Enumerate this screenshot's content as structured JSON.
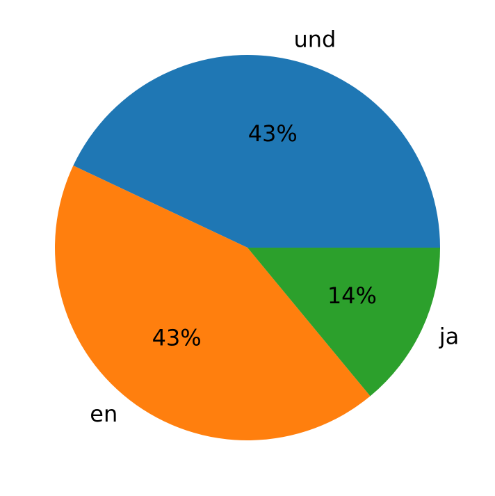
{
  "chart_data": {
    "type": "pie",
    "categories": [
      "und",
      "en",
      "ja"
    ],
    "values": [
      43,
      43,
      14
    ],
    "value_labels": [
      "43%",
      "43%",
      "14%"
    ],
    "colors": [
      "#1f77b4",
      "#ff7f0e",
      "#2ca02c"
    ]
  }
}
